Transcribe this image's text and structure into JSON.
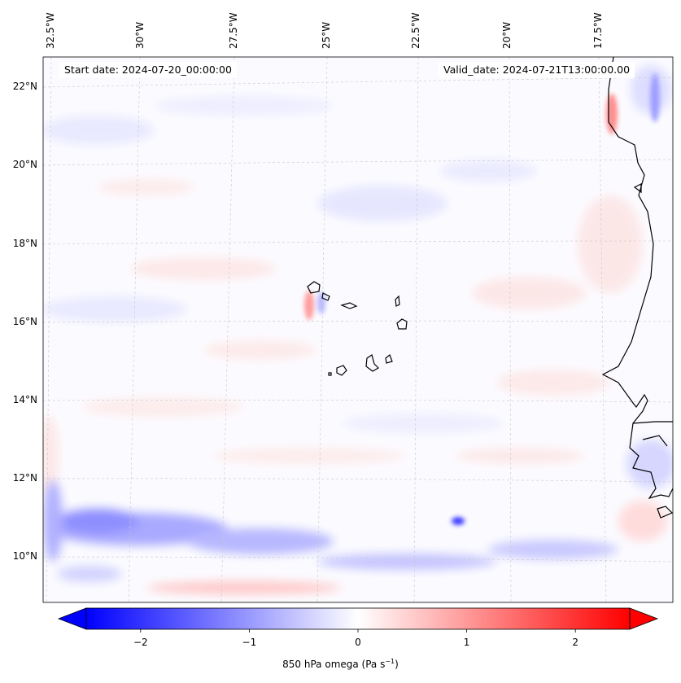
{
  "map": {
    "start_date": "Start date: 2024-07-20_00:00:00",
    "valid_date": "Valid_date: 2024-07-21T13:00:00.00",
    "lon_labels": [
      "32.5°W",
      "30°W",
      "27.5°W",
      "25°W",
      "22.5°W",
      "20°W",
      "17.5°W"
    ],
    "lat_labels": [
      "22°N",
      "20°N",
      "18°N",
      "16°N",
      "14°N",
      "12°N",
      "10°N"
    ],
    "lon_values": [
      -32.5,
      -30,
      -27.5,
      -25,
      -22.5,
      -20,
      -17.5
    ],
    "lat_values": [
      22,
      20,
      18,
      16,
      14,
      12,
      10
    ],
    "extent": {
      "lon_min": -32.75,
      "lon_max": -15.55,
      "lat_min": 8.9,
      "lat_max": 22.8
    }
  },
  "colorbar": {
    "label_main": "850 hPa omega (Pa s",
    "label_exp": "−1",
    "label_end": ")",
    "ticks": [
      "−2",
      "−1",
      "0",
      "1",
      "2"
    ],
    "tick_values": [
      -2,
      -1,
      0,
      1,
      2
    ],
    "vmin": -2.5,
    "vmax": 2.5,
    "colormap": "bwr",
    "color_min": "#0000ff",
    "color_mid": "#ffffff",
    "color_max": "#ff0000"
  }
}
